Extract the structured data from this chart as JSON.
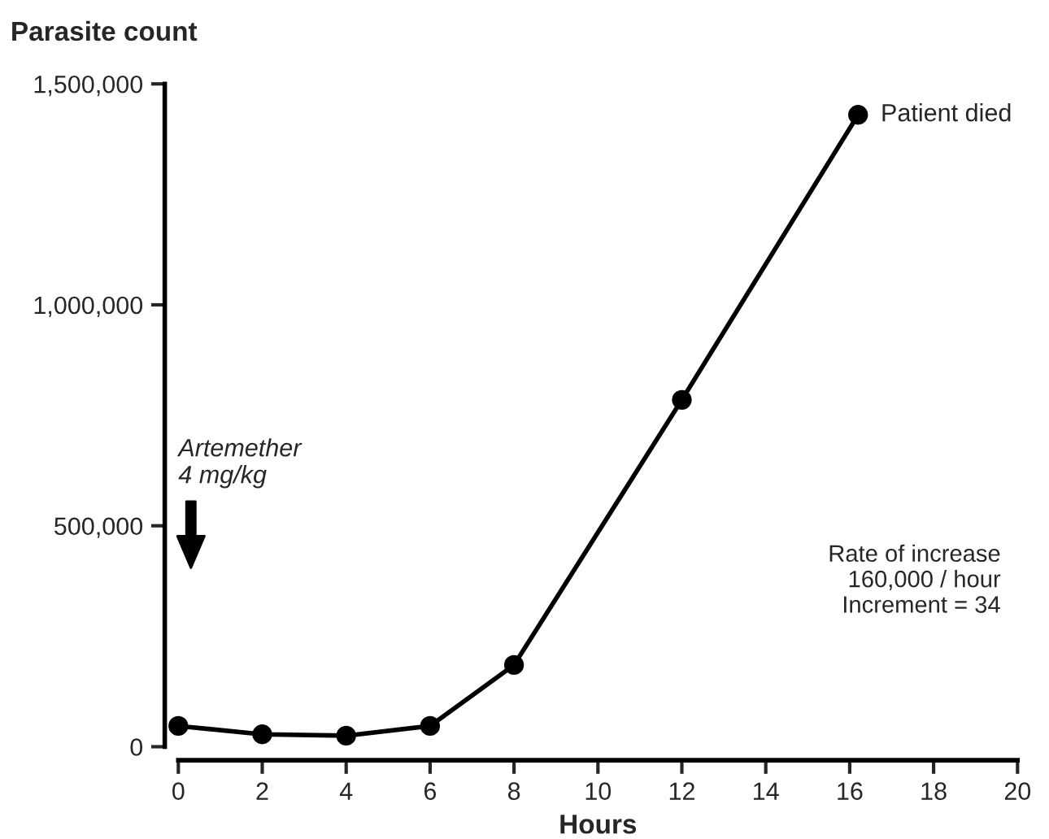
{
  "chart_data": {
    "type": "line",
    "xlabel": "Hours",
    "ylabel": "Parasite count",
    "x": [
      0,
      2,
      4,
      6,
      8,
      12,
      16.2
    ],
    "series": [
      {
        "color": "#000000",
        "values": [
          47000,
          28000,
          25000,
          47000,
          185000,
          785000,
          1430000
        ]
      }
    ],
    "xlim": [
      0,
      20
    ],
    "xticks": [
      0,
      2,
      4,
      6,
      8,
      10,
      12,
      14,
      16,
      18,
      20
    ],
    "ylim": [
      0,
      1500000
    ],
    "yticks": [
      {
        "value": 0,
        "label": "0"
      },
      {
        "value": 500000,
        "label": "500,000"
      },
      {
        "value": 1000000,
        "label": "1,000,000"
      },
      {
        "value": 1500000,
        "label": "1,500,000"
      }
    ],
    "marker": "circle",
    "line_style": "solid",
    "grid": false,
    "legend": false,
    "annotations": [
      {
        "text": "Patient died",
        "x": 16.2,
        "y": 1430000
      },
      "Artemether\n4 mg/kg",
      "Rate of increase\n160,000 / hour\nIncrement = 34"
    ]
  }
}
